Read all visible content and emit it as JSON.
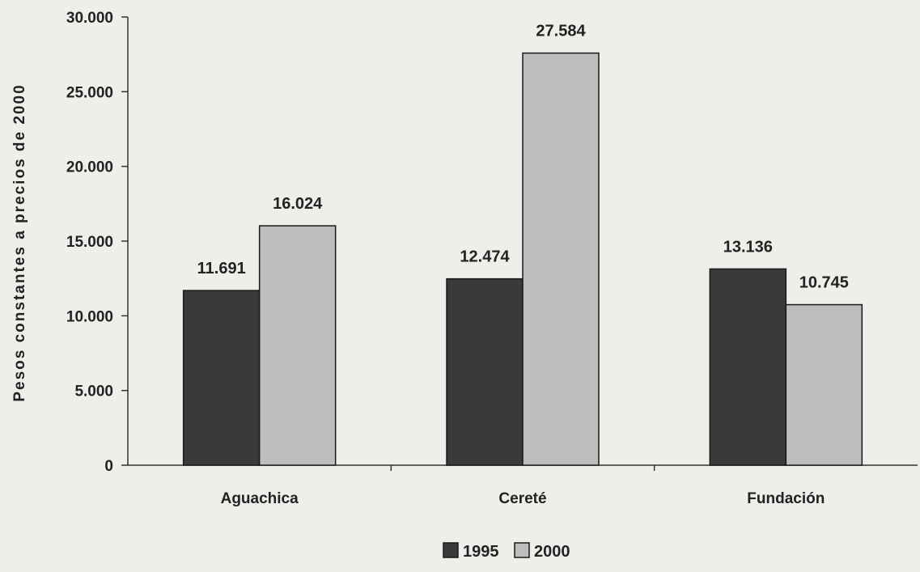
{
  "chart_data": {
    "type": "bar",
    "title": "",
    "xlabel": "",
    "ylabel": "Pesos constantes a precios de 2000",
    "ylim": [
      0,
      30000
    ],
    "yticks": [
      0,
      5000,
      10000,
      15000,
      20000,
      25000,
      30000
    ],
    "ytick_labels": [
      "0",
      "5.000",
      "10.000",
      "15.000",
      "20.000",
      "25.000",
      "30.000"
    ],
    "categories": [
      "Aguachica",
      "Cereté",
      "Fundación"
    ],
    "series": [
      {
        "name": "1995",
        "values": [
          11691,
          12474,
          13136
        ],
        "value_labels": [
          "11.691",
          "12.474",
          "13.136"
        ],
        "color": "#3a3a3a"
      },
      {
        "name": "2000",
        "values": [
          16024,
          27584,
          10745
        ],
        "value_labels": [
          "16.024",
          "27.584",
          "10.745"
        ],
        "color": "#bdbdbb"
      }
    ],
    "grid": false,
    "legend_position": "bottom-center"
  }
}
